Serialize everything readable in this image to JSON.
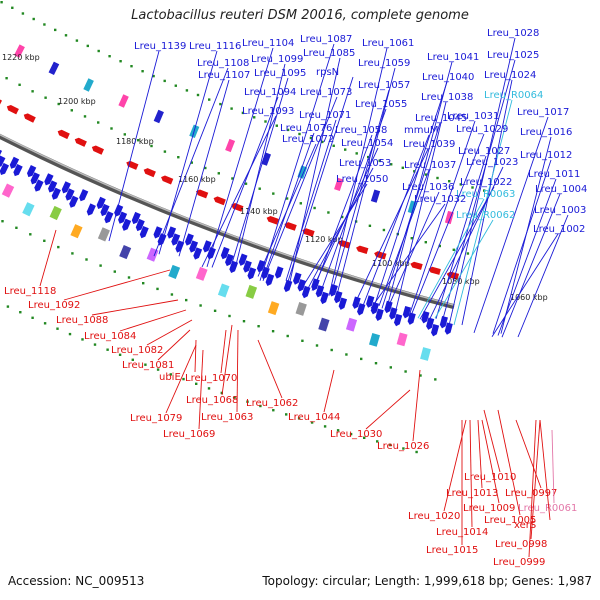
{
  "title": "Lactobacillus reuteri DSM 20016, complete genome",
  "footer": {
    "accession": "Accession: NC_009513",
    "stats": "Topology: circular; Length: 1,999,618 bp; Genes: 1,987"
  },
  "colors": {
    "forward_gene": "#1a1ad6",
    "reverse_gene": "#e01010",
    "rna_label": "#33bbdd",
    "pseudo_label": "#e377a8",
    "backbone": "#888888",
    "tick": "#228822"
  },
  "kbp_labels": [
    "1220 kbp",
    "1200 kbp",
    "1180 kbp",
    "1160 kbp",
    "1140 kbp",
    "1120 kbp",
    "1100 kbp",
    "1080 kbp",
    "1060 kbp"
  ],
  "top_labels": [
    {
      "text": "Lreu_1139",
      "kind": "gene"
    },
    {
      "text": "Lreu_1116",
      "kind": "gene"
    },
    {
      "text": "Lreu_1104",
      "kind": "gene"
    },
    {
      "text": "Lreu_1087",
      "kind": "gene"
    },
    {
      "text": "Lreu_1085",
      "kind": "gene"
    },
    {
      "text": "Lreu_1061",
      "kind": "gene"
    },
    {
      "text": "Lreu_1028",
      "kind": "gene"
    },
    {
      "text": "Lreu_1108",
      "kind": "gene"
    },
    {
      "text": "Lreu_1099",
      "kind": "gene"
    },
    {
      "text": "Lreu_1059",
      "kind": "gene"
    },
    {
      "text": "Lreu_1041",
      "kind": "gene"
    },
    {
      "text": "Lreu_1025",
      "kind": "gene"
    },
    {
      "text": "Lreu_1107",
      "kind": "gene"
    },
    {
      "text": "Lreu_1095",
      "kind": "gene"
    },
    {
      "text": "rpsN",
      "kind": "gene"
    },
    {
      "text": "Lreu_1040",
      "kind": "gene"
    },
    {
      "text": "Lreu_1024",
      "kind": "gene"
    },
    {
      "text": "Lreu_1057",
      "kind": "gene"
    },
    {
      "text": "Lreu_1094",
      "kind": "gene"
    },
    {
      "text": "Lreu_1073",
      "kind": "gene"
    },
    {
      "text": "Lreu_1038",
      "kind": "gene"
    },
    {
      "text": "Lreu_R0064",
      "kind": "rna"
    },
    {
      "text": "Lreu_1055",
      "kind": "gene"
    },
    {
      "text": "Lreu_1093",
      "kind": "gene"
    },
    {
      "text": "Lreu_1071",
      "kind": "gene"
    },
    {
      "text": "Lreu_1045",
      "kind": "gene"
    },
    {
      "text": "Lreu_1031",
      "kind": "gene"
    },
    {
      "text": "Lreu_1017",
      "kind": "gene"
    },
    {
      "text": "Lreu_1076",
      "kind": "gene"
    },
    {
      "text": "Lreu_1058",
      "kind": "gene"
    },
    {
      "text": "mmuM",
      "kind": "gene"
    },
    {
      "text": "Lreu_1029",
      "kind": "gene"
    },
    {
      "text": "Lreu_1016",
      "kind": "gene"
    },
    {
      "text": "Lreu_1072",
      "kind": "gene"
    },
    {
      "text": "Lreu_1054",
      "kind": "gene"
    },
    {
      "text": "Lreu_1039",
      "kind": "gene"
    },
    {
      "text": "Lreu_1027",
      "kind": "gene"
    },
    {
      "text": "Lreu_1012",
      "kind": "gene"
    },
    {
      "text": "Lreu_1053",
      "kind": "gene"
    },
    {
      "text": "Lreu_1023",
      "kind": "gene"
    },
    {
      "text": "Lreu_1037",
      "kind": "gene"
    },
    {
      "text": "Lreu_1011",
      "kind": "gene"
    },
    {
      "text": "Lreu_1050",
      "kind": "gene"
    },
    {
      "text": "Lreu_1022",
      "kind": "gene"
    },
    {
      "text": "Lreu_1036",
      "kind": "gene"
    },
    {
      "text": "Lreu_1004",
      "kind": "gene"
    },
    {
      "text": "Lreu_R0063",
      "kind": "rna"
    },
    {
      "text": "Lreu_1032",
      "kind": "gene"
    },
    {
      "text": "Lreu_1003",
      "kind": "gene"
    },
    {
      "text": "Lreu_R0062",
      "kind": "rna"
    },
    {
      "text": "Lreu_1002",
      "kind": "gene"
    }
  ],
  "bottom_labels": [
    {
      "text": "Lreu_1118",
      "kind": "gene"
    },
    {
      "text": "Lreu_1092",
      "kind": "gene"
    },
    {
      "text": "Lreu_1088",
      "kind": "gene"
    },
    {
      "text": "Lreu_1084",
      "kind": "gene"
    },
    {
      "text": "Lreu_1082",
      "kind": "gene"
    },
    {
      "text": "Lreu_1081",
      "kind": "gene"
    },
    {
      "text": "ubiE",
      "kind": "gene"
    },
    {
      "text": "Lreu_1070",
      "kind": "gene"
    },
    {
      "text": "Lreu_1079",
      "kind": "gene"
    },
    {
      "text": "Lreu_1068",
      "kind": "gene"
    },
    {
      "text": "Lreu_1069",
      "kind": "gene"
    },
    {
      "text": "Lreu_1063",
      "kind": "gene"
    },
    {
      "text": "Lreu_1062",
      "kind": "gene"
    },
    {
      "text": "Lreu_1044",
      "kind": "gene"
    },
    {
      "text": "Lreu_1030",
      "kind": "gene"
    },
    {
      "text": "Lreu_1026",
      "kind": "gene"
    },
    {
      "text": "Lreu_1010",
      "kind": "gene"
    },
    {
      "text": "Lreu_1013",
      "kind": "gene"
    },
    {
      "text": "Lreu_0997",
      "kind": "gene"
    },
    {
      "text": "Lreu_1009",
      "kind": "gene"
    },
    {
      "text": "Lreu_R0061",
      "kind": "pseudo"
    },
    {
      "text": "Lreu_1020",
      "kind": "gene"
    },
    {
      "text": "Lreu_1005",
      "kind": "gene"
    },
    {
      "text": "xerS",
      "kind": "gene"
    },
    {
      "text": "Lreu_1014",
      "kind": "gene"
    },
    {
      "text": "Lreu_0998",
      "kind": "gene"
    },
    {
      "text": "Lreu_1015",
      "kind": "gene"
    },
    {
      "text": "Lreu_0999",
      "kind": "gene"
    }
  ]
}
